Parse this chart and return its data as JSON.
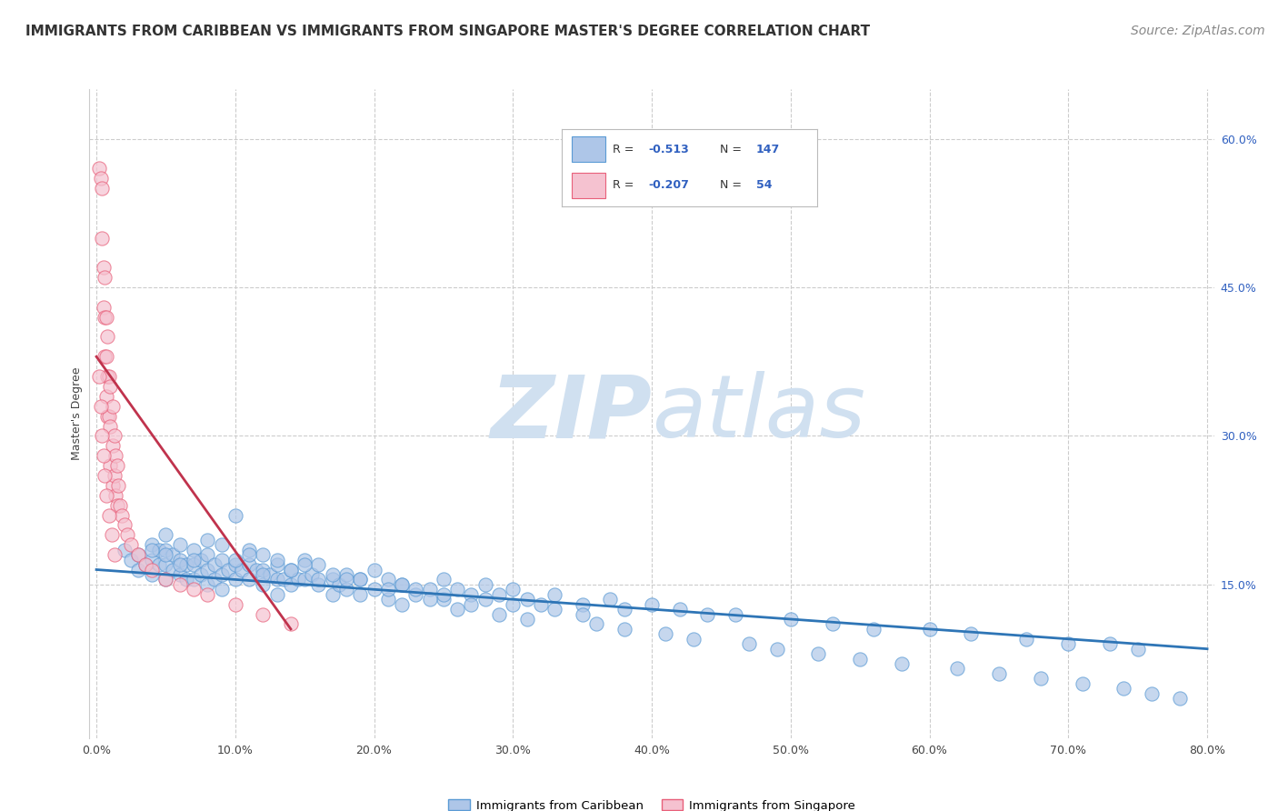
{
  "title": "IMMIGRANTS FROM CARIBBEAN VS IMMIGRANTS FROM SINGAPORE MASTER'S DEGREE CORRELATION CHART",
  "source": "Source: ZipAtlas.com",
  "xlabel_left": "Immigrants from Caribbean",
  "xlabel_right": "Immigrants from Singapore",
  "ylabel": "Master's Degree",
  "xlim": [
    -0.005,
    0.805
  ],
  "ylim": [
    -0.005,
    0.65
  ],
  "xticks": [
    0.0,
    0.1,
    0.2,
    0.3,
    0.4,
    0.5,
    0.6,
    0.7,
    0.8
  ],
  "yticks_right": [
    0.15,
    0.3,
    0.45,
    0.6
  ],
  "ytick_labels_right": [
    "15.0%",
    "30.0%",
    "45.0%",
    "60.0%"
  ],
  "xtick_labels": [
    "0.0%",
    "10.0%",
    "20.0%",
    "30.0%",
    "40.0%",
    "50.0%",
    "60.0%",
    "70.0%",
    "80.0%"
  ],
  "blue_R": -0.513,
  "blue_N": 147,
  "pink_R": -0.207,
  "pink_N": 54,
  "blue_color": "#aec6e8",
  "blue_edge_color": "#5b9bd5",
  "pink_color": "#f5c2d0",
  "pink_edge_color": "#e8607a",
  "blue_line_color": "#2e75b6",
  "pink_line_color": "#c0334d",
  "background_color": "#ffffff",
  "grid_color": "#cccccc",
  "watermark_color": "#d0e0f0",
  "legend_box_color": "#3060c0",
  "title_fontsize": 11,
  "source_fontsize": 10,
  "axis_fontsize": 9,
  "blue_scatter_x": [
    0.02,
    0.025,
    0.03,
    0.03,
    0.035,
    0.04,
    0.04,
    0.04,
    0.045,
    0.045,
    0.05,
    0.05,
    0.05,
    0.05,
    0.055,
    0.055,
    0.06,
    0.06,
    0.06,
    0.065,
    0.065,
    0.07,
    0.07,
    0.07,
    0.075,
    0.075,
    0.08,
    0.08,
    0.08,
    0.085,
    0.085,
    0.09,
    0.09,
    0.09,
    0.095,
    0.1,
    0.1,
    0.1,
    0.105,
    0.11,
    0.11,
    0.11,
    0.115,
    0.12,
    0.12,
    0.12,
    0.125,
    0.13,
    0.13,
    0.13,
    0.135,
    0.14,
    0.14,
    0.145,
    0.15,
    0.15,
    0.155,
    0.16,
    0.16,
    0.17,
    0.17,
    0.175,
    0.18,
    0.18,
    0.19,
    0.19,
    0.2,
    0.2,
    0.21,
    0.21,
    0.22,
    0.22,
    0.23,
    0.24,
    0.25,
    0.25,
    0.26,
    0.27,
    0.28,
    0.29,
    0.3,
    0.31,
    0.32,
    0.33,
    0.35,
    0.37,
    0.38,
    0.4,
    0.42,
    0.44,
    0.46,
    0.5,
    0.53,
    0.56,
    0.6,
    0.63,
    0.67,
    0.7,
    0.73,
    0.75,
    0.3,
    0.35,
    0.25,
    0.28,
    0.33,
    0.27,
    0.23,
    0.22,
    0.19,
    0.17,
    0.18,
    0.21,
    0.24,
    0.26,
    0.29,
    0.31,
    0.36,
    0.38,
    0.41,
    0.43,
    0.47,
    0.49,
    0.52,
    0.55,
    0.58,
    0.62,
    0.65,
    0.68,
    0.71,
    0.74,
    0.76,
    0.78,
    0.15,
    0.16,
    0.13,
    0.14,
    0.11,
    0.12,
    0.1,
    0.09,
    0.08,
    0.07,
    0.06,
    0.05,
    0.04
  ],
  "blue_scatter_y": [
    0.185,
    0.175,
    0.18,
    0.165,
    0.17,
    0.19,
    0.175,
    0.16,
    0.185,
    0.17,
    0.2,
    0.185,
    0.17,
    0.155,
    0.18,
    0.165,
    0.19,
    0.175,
    0.16,
    0.17,
    0.155,
    0.185,
    0.17,
    0.155,
    0.175,
    0.16,
    0.18,
    0.165,
    0.15,
    0.17,
    0.155,
    0.175,
    0.16,
    0.145,
    0.165,
    0.22,
    0.17,
    0.155,
    0.165,
    0.185,
    0.17,
    0.155,
    0.165,
    0.18,
    0.165,
    0.15,
    0.16,
    0.17,
    0.155,
    0.14,
    0.155,
    0.165,
    0.15,
    0.155,
    0.175,
    0.155,
    0.16,
    0.17,
    0.15,
    0.155,
    0.14,
    0.15,
    0.16,
    0.145,
    0.155,
    0.14,
    0.165,
    0.145,
    0.155,
    0.135,
    0.15,
    0.13,
    0.14,
    0.145,
    0.155,
    0.135,
    0.145,
    0.14,
    0.15,
    0.14,
    0.145,
    0.135,
    0.13,
    0.14,
    0.13,
    0.135,
    0.125,
    0.13,
    0.125,
    0.12,
    0.12,
    0.115,
    0.11,
    0.105,
    0.105,
    0.1,
    0.095,
    0.09,
    0.09,
    0.085,
    0.13,
    0.12,
    0.14,
    0.135,
    0.125,
    0.13,
    0.145,
    0.15,
    0.155,
    0.16,
    0.155,
    0.145,
    0.135,
    0.125,
    0.12,
    0.115,
    0.11,
    0.105,
    0.1,
    0.095,
    0.09,
    0.085,
    0.08,
    0.075,
    0.07,
    0.065,
    0.06,
    0.055,
    0.05,
    0.045,
    0.04,
    0.035,
    0.17,
    0.155,
    0.175,
    0.165,
    0.18,
    0.16,
    0.175,
    0.19,
    0.195,
    0.175,
    0.17,
    0.18,
    0.185
  ],
  "pink_scatter_x": [
    0.002,
    0.003,
    0.004,
    0.004,
    0.005,
    0.005,
    0.006,
    0.006,
    0.006,
    0.007,
    0.007,
    0.007,
    0.008,
    0.008,
    0.008,
    0.009,
    0.009,
    0.01,
    0.01,
    0.01,
    0.012,
    0.012,
    0.012,
    0.013,
    0.013,
    0.014,
    0.014,
    0.015,
    0.015,
    0.016,
    0.017,
    0.018,
    0.02,
    0.022,
    0.025,
    0.03,
    0.035,
    0.04,
    0.05,
    0.06,
    0.07,
    0.08,
    0.1,
    0.12,
    0.14,
    0.002,
    0.003,
    0.004,
    0.005,
    0.006,
    0.007,
    0.009,
    0.011,
    0.013
  ],
  "pink_scatter_y": [
    0.57,
    0.56,
    0.55,
    0.5,
    0.47,
    0.43,
    0.46,
    0.42,
    0.38,
    0.42,
    0.38,
    0.34,
    0.4,
    0.36,
    0.32,
    0.36,
    0.32,
    0.35,
    0.31,
    0.27,
    0.33,
    0.29,
    0.25,
    0.3,
    0.26,
    0.28,
    0.24,
    0.27,
    0.23,
    0.25,
    0.23,
    0.22,
    0.21,
    0.2,
    0.19,
    0.18,
    0.17,
    0.165,
    0.155,
    0.15,
    0.145,
    0.14,
    0.13,
    0.12,
    0.11,
    0.36,
    0.33,
    0.3,
    0.28,
    0.26,
    0.24,
    0.22,
    0.2,
    0.18
  ],
  "blue_trend_x": [
    0.0,
    0.8
  ],
  "blue_trend_y": [
    0.165,
    0.085
  ],
  "pink_trend_x": [
    0.0,
    0.14
  ],
  "pink_trend_y": [
    0.38,
    0.105
  ]
}
